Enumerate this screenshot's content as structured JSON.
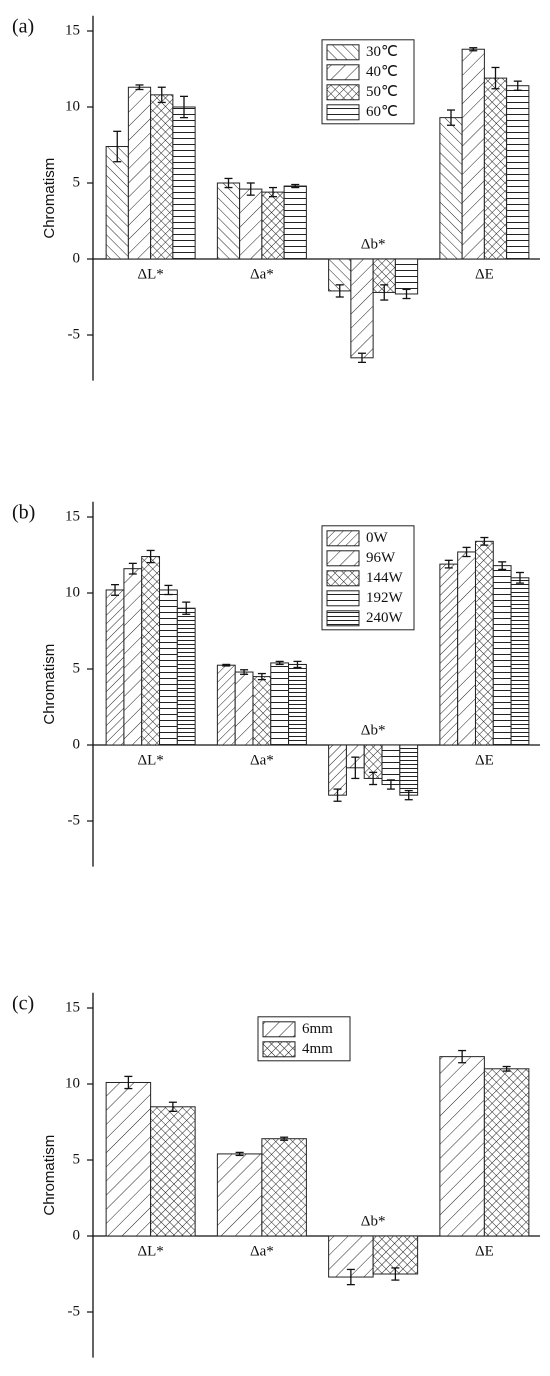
{
  "chart_data": [
    {
      "type": "bar",
      "panel_label": "(a)",
      "ylabel": "Chromatism",
      "categories": [
        "ΔL*",
        "Δa*",
        "Δb*",
        "ΔE"
      ],
      "series": [
        {
          "name": "30℃",
          "pattern": "back-diagonal",
          "values": [
            7.4,
            5.0,
            -2.1,
            9.3
          ],
          "errors": [
            1.0,
            0.3,
            0.4,
            0.5
          ]
        },
        {
          "name": "40℃",
          "pattern": "diagonal",
          "values": [
            11.3,
            4.6,
            -6.5,
            13.8
          ],
          "errors": [
            0.15,
            0.4,
            0.3,
            0.1
          ]
        },
        {
          "name": "50℃",
          "pattern": "crosshatch",
          "values": [
            10.8,
            4.4,
            -2.2,
            11.9
          ],
          "errors": [
            0.5,
            0.3,
            0.5,
            0.7
          ]
        },
        {
          "name": "60℃",
          "pattern": "horizontal",
          "values": [
            10.0,
            4.8,
            -2.3,
            11.4
          ],
          "errors": [
            0.7,
            0.1,
            0.3,
            0.3
          ]
        }
      ],
      "ylim": [
        -8,
        16
      ],
      "yticks": [
        -5,
        0,
        5,
        10,
        15
      ],
      "legend_position": "upper right"
    },
    {
      "type": "bar",
      "panel_label": "(b)",
      "ylabel": "Chromatism",
      "categories": [
        "ΔL*",
        "Δa*",
        "Δb*",
        "ΔE"
      ],
      "series": [
        {
          "name": "0W",
          "pattern": "diagonal-dense",
          "values": [
            10.2,
            5.25,
            -3.3,
            11.9
          ],
          "errors": [
            0.35,
            0.05,
            0.4,
            0.25
          ]
        },
        {
          "name": "96W",
          "pattern": "diagonal",
          "values": [
            11.6,
            4.8,
            -1.5,
            12.7
          ],
          "errors": [
            0.35,
            0.15,
            0.7,
            0.3
          ]
        },
        {
          "name": "144W",
          "pattern": "crosshatch",
          "values": [
            12.4,
            4.5,
            -2.2,
            13.4
          ],
          "errors": [
            0.4,
            0.2,
            0.4,
            0.25
          ]
        },
        {
          "name": "192W",
          "pattern": "horizontal",
          "values": [
            10.2,
            5.4,
            -2.6,
            11.8
          ],
          "errors": [
            0.3,
            0.1,
            0.3,
            0.25
          ]
        },
        {
          "name": "240W",
          "pattern": "horizontal-dense",
          "values": [
            9.0,
            5.3,
            -3.3,
            11.0
          ],
          "errors": [
            0.4,
            0.2,
            0.3,
            0.35
          ]
        }
      ],
      "ylim": [
        -8,
        16
      ],
      "yticks": [
        -5,
        0,
        5,
        10,
        15
      ],
      "legend_position": "upper right"
    },
    {
      "type": "bar",
      "panel_label": "(c)",
      "ylabel": "Chromatism",
      "categories": [
        "ΔL*",
        "Δa*",
        "Δb*",
        "ΔE"
      ],
      "series": [
        {
          "name": "6mm",
          "pattern": "diagonal",
          "values": [
            10.1,
            5.4,
            -2.7,
            11.8
          ],
          "errors": [
            0.4,
            0.1,
            0.5,
            0.4
          ]
        },
        {
          "name": "4mm",
          "pattern": "crosshatch",
          "values": [
            8.5,
            6.4,
            -2.5,
            11.0
          ],
          "errors": [
            0.3,
            0.1,
            0.4,
            0.15
          ]
        }
      ],
      "ylim": [
        -8,
        16
      ],
      "yticks": [
        -5,
        0,
        5,
        10,
        15
      ],
      "legend_position": "upper center"
    }
  ]
}
